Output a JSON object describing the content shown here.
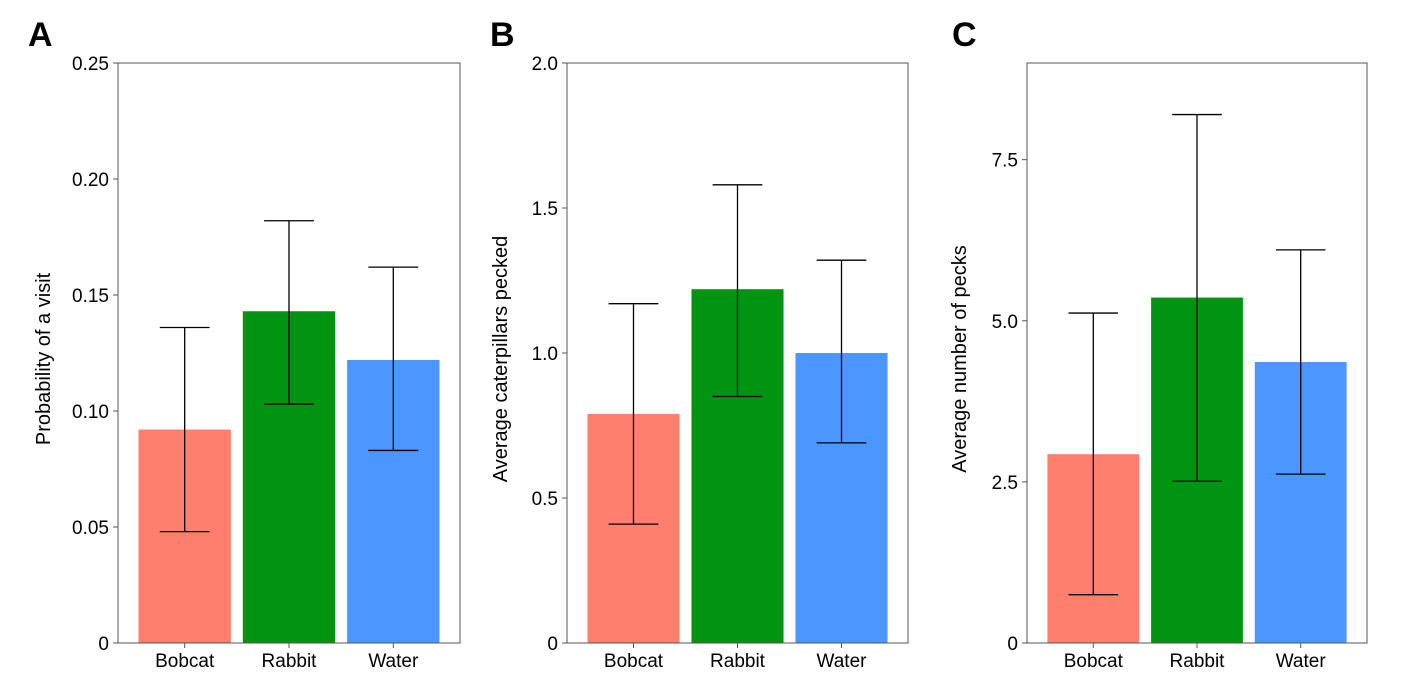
{
  "chart_data": [
    {
      "type": "bar",
      "panel": "A",
      "title": "",
      "xlabel": "",
      "ylabel": "Probability of a visit",
      "categories": [
        "Bobcat",
        "Rabbit",
        "Water"
      ],
      "values": [
        0.092,
        0.143,
        0.122
      ],
      "error_low": [
        0.048,
        0.103,
        0.083
      ],
      "error_high": [
        0.136,
        0.182,
        0.162
      ],
      "colors": [
        "#ff7f6e",
        "#009410",
        "#4c96ff"
      ],
      "ylim": [
        0,
        0.25
      ],
      "yticks": [
        0,
        0.05,
        0.1,
        0.15,
        0.2,
        0.25
      ],
      "ytick_labels": [
        "0",
        "0.05",
        "0.10",
        "0.15",
        "0.20",
        "0.25"
      ],
      "grid": false,
      "legend": "none"
    },
    {
      "type": "bar",
      "panel": "B",
      "title": "",
      "xlabel": "",
      "ylabel": "Average caterpillars pecked",
      "categories": [
        "Bobcat",
        "Rabbit",
        "Water"
      ],
      "values": [
        0.79,
        1.22,
        1.0
      ],
      "error_low": [
        0.41,
        0.85,
        0.69
      ],
      "error_high": [
        1.17,
        1.58,
        1.32
      ],
      "colors": [
        "#ff7f6e",
        "#009410",
        "#4c96ff"
      ],
      "ylim": [
        0,
        2.0
      ],
      "yticks": [
        0,
        0.5,
        1.0,
        1.5,
        2.0
      ],
      "ytick_labels": [
        "0",
        "0.5",
        "1.0",
        "1.5",
        "2.0"
      ],
      "grid": false,
      "legend": "none"
    },
    {
      "type": "bar",
      "panel": "C",
      "title": "",
      "xlabel": "",
      "ylabel": "Average number of pecks",
      "categories": [
        "Bobcat",
        "Rabbit",
        "Water"
      ],
      "values": [
        2.93,
        5.36,
        4.36
      ],
      "error_low": [
        0.75,
        2.51,
        2.62
      ],
      "error_high": [
        5.12,
        8.2,
        6.1
      ],
      "colors": [
        "#ff7f6e",
        "#009410",
        "#4c96ff"
      ],
      "ylim": [
        0,
        9
      ],
      "yticks": [
        0,
        2.5,
        5.0,
        7.5
      ],
      "ytick_labels": [
        "0",
        "2.5",
        "5.0",
        "7.5"
      ],
      "grid": false,
      "legend": "none"
    }
  ]
}
